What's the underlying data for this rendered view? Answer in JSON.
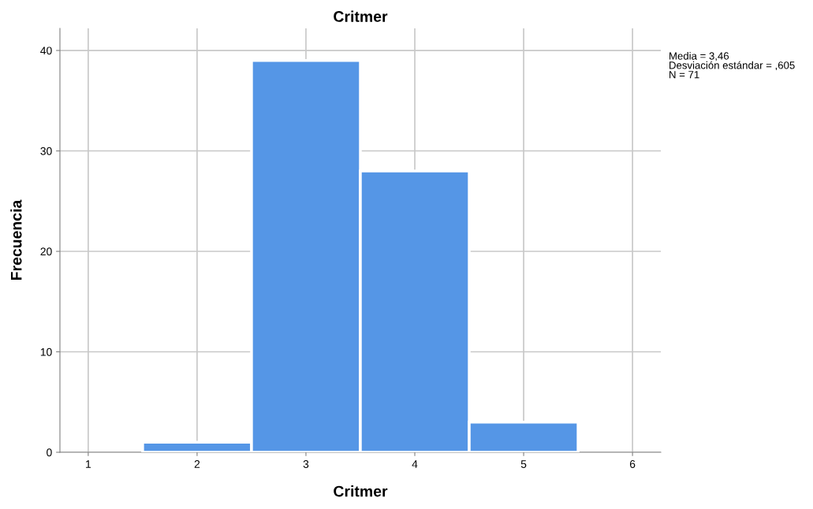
{
  "chart_data": {
    "type": "histogram",
    "title": "Critmer",
    "xlabel": "Critmer",
    "ylabel": "Frecuencia",
    "bins": [
      1.5,
      2.5,
      3.5,
      4.5,
      5.5
    ],
    "values": [
      1,
      39,
      28,
      3
    ],
    "color": "#5596e6",
    "xlim": [
      0.74,
      6.26
    ],
    "xticks": [
      1,
      2,
      3,
      4,
      5,
      6
    ],
    "ylim": [
      0,
      42.2
    ],
    "yticks": [
      0,
      10,
      20,
      30,
      40
    ],
    "grid": true,
    "annotations": [
      "Media = 3,46\nDesviación estándar = ,605\nN = 71"
    ]
  }
}
